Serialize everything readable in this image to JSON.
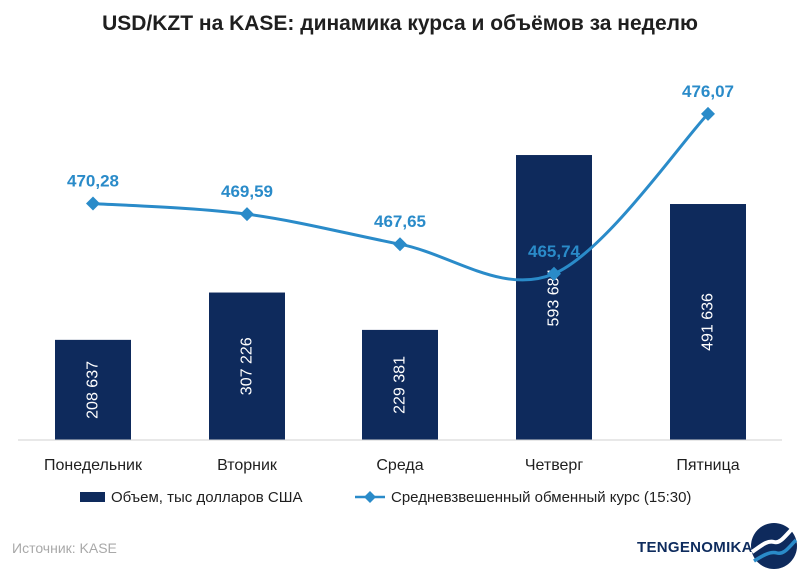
{
  "chart_data": {
    "type": "bar+line",
    "title": "USD/KZT на KASE: динамика курса и объёмов за неделю",
    "categories": [
      "Понедельник",
      "Вторник",
      "Среда",
      "Четверг",
      "Пятница"
    ],
    "series": [
      {
        "name": "Объем, тыс долларов США",
        "type": "bar",
        "values": [
          208637,
          307226,
          229381,
          593684,
          491636
        ],
        "labels": [
          "208 637",
          "307 226",
          "229 381",
          "593 684",
          "491 636"
        ],
        "color": "#0e2a5c"
      },
      {
        "name": "Средневзвешенный обменный курс (15:30)",
        "type": "line",
        "values": [
          470.28,
          469.59,
          467.65,
          465.74,
          476.07
        ],
        "labels": [
          "470,28",
          "469,59",
          "467,65",
          "465,74",
          "476,07"
        ],
        "color": "#2a8bc9"
      }
    ],
    "bar_ylim": [
      0,
      600000
    ],
    "line_ylim": [
      455,
      478
    ],
    "grid": false,
    "legend_position": "bottom"
  },
  "footer": {
    "source": "Источник: KASE",
    "brand": "TENGENOMIKA",
    "logo_icon": "tengenomika-logo-icon"
  }
}
